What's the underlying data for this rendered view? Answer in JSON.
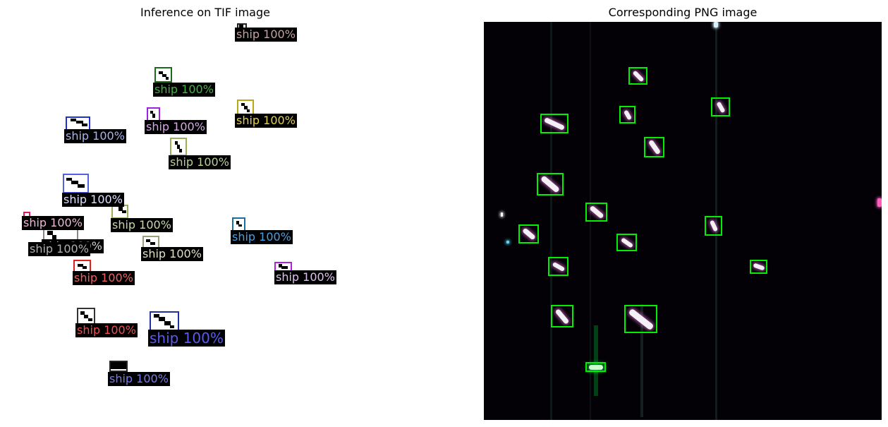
{
  "figure": {
    "left_title": "Inference on TIF image",
    "right_title": "Corresponding PNG image"
  },
  "detections": [
    {
      "label": "ship 100%",
      "color": "#c9a0a0"
    },
    {
      "label": "ship 100%",
      "color": "#3fb83f"
    },
    {
      "label": "ship 100%",
      "color": "#e6d24a"
    },
    {
      "label": "ship 100%",
      "color": "#d6a8e6"
    },
    {
      "label": "ship 100%",
      "color": "#a8b4f0"
    },
    {
      "label": "ship 100%",
      "color": "#b8cf98"
    },
    {
      "label": "ship 100%",
      "color": "#e0e0ff"
    },
    {
      "label": "ship 100%",
      "color": "#f0b8d8"
    },
    {
      "label": "ship 100%",
      "color": "#c8d8a8"
    },
    {
      "label": "ship 100%",
      "color": "#4aa0e0"
    },
    {
      "label": "ship 100%",
      "color": "#d0d0d0"
    },
    {
      "label": "ship 100%",
      "color": "#e0e0c8"
    },
    {
      "label": "ship 100%",
      "color": "#f06060"
    },
    {
      "label": "ship 100%",
      "color": "#e0c0f0"
    },
    {
      "label": "ship 100%",
      "color": "#f05050"
    },
    {
      "label": "ship 100%",
      "color": "#5a5af0"
    },
    {
      "label": "ship 100%",
      "color": "#7a7af0"
    },
    {
      "label": "ship 100%",
      "color": "#b0b0b0"
    }
  ],
  "colors": {
    "ground_truth_box": "#00f000",
    "png_background": "#030006"
  }
}
